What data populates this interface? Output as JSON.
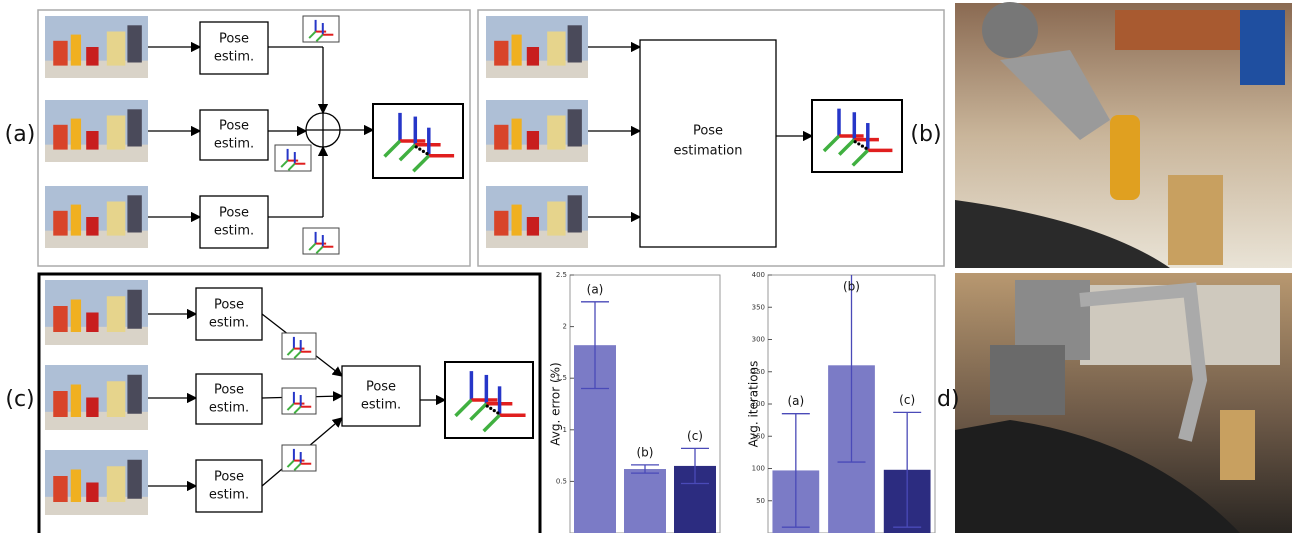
{
  "panel_labels": [
    "(a)",
    "(b)",
    "(c)",
    "(d)"
  ],
  "diagram_a": {
    "boxes": [
      [
        "Pose",
        "estim."
      ],
      [
        "Pose",
        "estim."
      ],
      [
        "Pose",
        "estim."
      ]
    ]
  },
  "diagram_b": {
    "box": [
      "Pose",
      "estimation"
    ]
  },
  "diagram_c": {
    "boxes": [
      [
        "Pose",
        "estim."
      ],
      [
        "Pose",
        "estim."
      ],
      [
        "Pose",
        "estim."
      ]
    ],
    "merge_box": [
      "Pose",
      "estim."
    ]
  },
  "chart_data": [
    {
      "type": "bar",
      "y_label": "Avg. error (%)",
      "categories": [
        "(a)",
        "(b)",
        "(c)"
      ],
      "values": [
        1.82,
        0.62,
        0.65
      ],
      "errors": [
        0.42,
        0.04,
        0.17
      ],
      "colors": [
        "#7b7bc6",
        "#7b7bc6",
        "#2c2c80"
      ],
      "ylim": [
        0,
        2.5
      ],
      "yticks": [
        0.5,
        1,
        1.5,
        2,
        2.5
      ]
    },
    {
      "type": "bar",
      "y_label": "Avg. iterations",
      "categories": [
        "(a)",
        "(b)",
        "(c)"
      ],
      "values": [
        97,
        260,
        98
      ],
      "errors": [
        88,
        150,
        89
      ],
      "colors": [
        "#7b7bc6",
        "#7b7bc6",
        "#2c2c80"
      ],
      "ylim": [
        0,
        400
      ],
      "yticks": [
        50,
        100,
        150,
        200,
        250,
        300,
        350,
        400
      ]
    }
  ]
}
